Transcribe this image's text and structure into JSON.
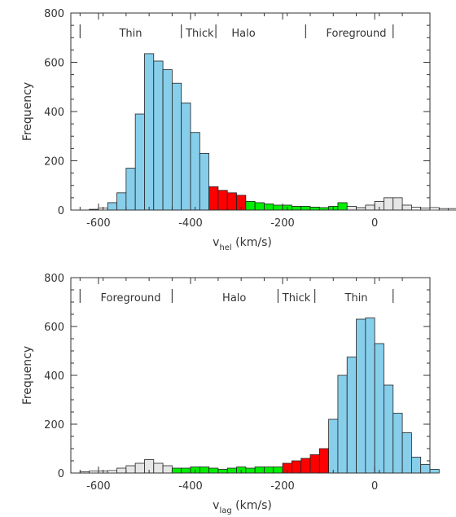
{
  "chart_data": [
    {
      "type": "bar",
      "xlabel_main": "v",
      "xlabel_sub": "hel",
      "xlabel_unit": " (km/s)",
      "ylabel": "Frequency",
      "xlim": [
        -660,
        120
      ],
      "ylim": [
        0,
        800
      ],
      "xticks": [
        -600,
        -400,
        -200,
        0
      ],
      "yticks": [
        0,
        200,
        400,
        600,
        800
      ],
      "bin_width": 20,
      "bin_start": -640,
      "region_labels": [
        "Thin",
        "Thick",
        "Halo",
        "Foreground"
      ],
      "region_label_x": [
        -530,
        -380,
        -285,
        -40
      ],
      "region_dividers": [
        -640,
        -420,
        -345,
        -150,
        40
      ],
      "colors": {
        "thin": "#87ceeb",
        "thick": "#ff0000",
        "halo": "#00ee00",
        "foreground": "#e6e6e6",
        "empty": "#ffffff"
      },
      "values": [
        0,
        3,
        8,
        30,
        70,
        170,
        390,
        635,
        605,
        570,
        515,
        435,
        315,
        230,
        95,
        80,
        70,
        60,
        35,
        30,
        25,
        20,
        20,
        15,
        15,
        12,
        10,
        15,
        30,
        15,
        10,
        20,
        35,
        50,
        50,
        20,
        12,
        8,
        10,
        6,
        6,
        3
      ],
      "bin_colors": [
        "empty",
        "empty",
        "empty",
        "thin",
        "thin",
        "thin",
        "thin",
        "thin",
        "thin",
        "thin",
        "thin",
        "thin",
        "thin",
        "thin",
        "thick",
        "thick",
        "thick",
        "thick",
        "halo",
        "halo",
        "halo",
        "halo",
        "halo",
        "halo",
        "halo",
        "halo",
        "halo",
        "halo",
        "halo",
        "foreground",
        "foreground",
        "foreground",
        "foreground",
        "foreground",
        "foreground",
        "foreground",
        "empty",
        "empty",
        "empty",
        "empty",
        "empty",
        "empty"
      ]
    },
    {
      "type": "bar",
      "xlabel_main": "v",
      "xlabel_sub": "lag",
      "xlabel_unit": " (km/s)",
      "ylabel": "Frequency",
      "xlim": [
        -660,
        120
      ],
      "ylim": [
        0,
        800
      ],
      "xticks": [
        -600,
        -400,
        -200,
        0
      ],
      "yticks": [
        0,
        200,
        400,
        600,
        800
      ],
      "bin_width": 20,
      "bin_start": -640,
      "region_labels": [
        "Foreground",
        "Halo",
        "Thick",
        "Thin"
      ],
      "region_label_x": [
        -530,
        -305,
        -170,
        -40
      ],
      "region_dividers": [
        -640,
        -440,
        -210,
        -130,
        40
      ],
      "colors": {
        "thin": "#87ceeb",
        "thick": "#ff0000",
        "halo": "#00ee00",
        "foreground": "#e6e6e6",
        "empty": "#ffffff"
      },
      "values": [
        5,
        8,
        8,
        10,
        20,
        30,
        40,
        55,
        40,
        30,
        20,
        20,
        25,
        25,
        20,
        15,
        20,
        25,
        20,
        25,
        25,
        25,
        40,
        50,
        60,
        75,
        100,
        220,
        400,
        475,
        630,
        635,
        530,
        360,
        245,
        165,
        65,
        35,
        15,
        0,
        0,
        0
      ],
      "bin_colors": [
        "empty",
        "empty",
        "empty",
        "empty",
        "foreground",
        "foreground",
        "foreground",
        "foreground",
        "foreground",
        "foreground",
        "halo",
        "halo",
        "halo",
        "halo",
        "halo",
        "halo",
        "halo",
        "halo",
        "halo",
        "halo",
        "halo",
        "halo",
        "thick",
        "thick",
        "thick",
        "thick",
        "thick",
        "thin",
        "thin",
        "thin",
        "thin",
        "thin",
        "thin",
        "thin",
        "thin",
        "thin",
        "thin",
        "thin",
        "thin",
        "empty",
        "empty",
        "empty"
      ]
    }
  ]
}
